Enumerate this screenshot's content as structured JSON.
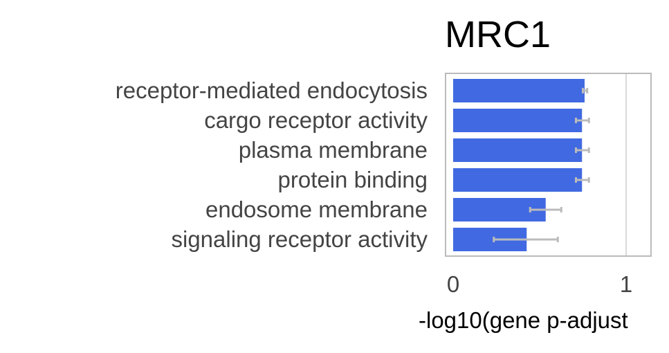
{
  "chart_data": {
    "type": "bar",
    "orientation": "horizontal",
    "title": "MRC1",
    "xlabel": "-log10(gene p-adjust",
    "ylabel": "",
    "categories": [
      "receptor-mediated endocytosis",
      "cargo receptor activity",
      "plasma membrane",
      "protein binding",
      "endosome membrane",
      "signaling receptor activity"
    ],
    "values": [
      0.76,
      0.745,
      0.745,
      0.745,
      0.535,
      0.425
    ],
    "errors": [
      {
        "low": 0.75,
        "high": 0.775
      },
      {
        "low": 0.71,
        "high": 0.785
      },
      {
        "low": 0.71,
        "high": 0.785
      },
      {
        "low": 0.71,
        "high": 0.785
      },
      {
        "low": 0.445,
        "high": 0.625
      },
      {
        "low": 0.235,
        "high": 0.605
      }
    ],
    "xlim": [
      -0.05,
      1.15
    ],
    "xticks": [
      0,
      1
    ],
    "xtick_labels": [
      "0",
      "1"
    ],
    "grid": true,
    "legend": "none",
    "colors": {
      "bar": "#4169e1",
      "error_bar": "#bbbbbb",
      "frame": "#bbbbbb",
      "grid": "#d9d9d9"
    }
  }
}
